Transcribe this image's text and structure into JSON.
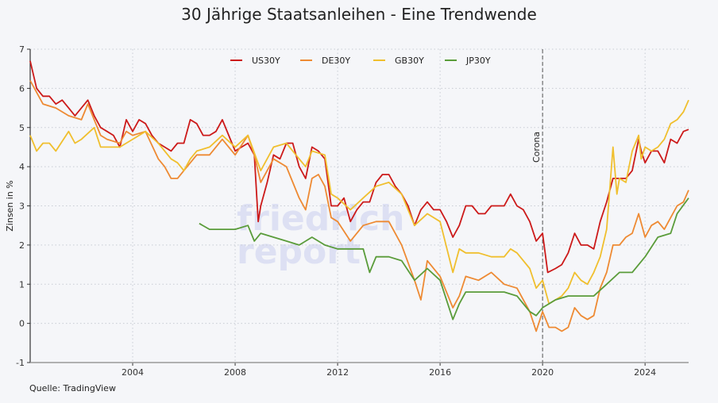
{
  "title": "30 Jährige Staatsanleihen - Eine Trendwende",
  "source": "Quelle: TradingView",
  "watermark": "friedrich report",
  "chart_data": {
    "type": "line",
    "title": "30 Jährige Staatsanleihen - Eine Trendwende",
    "xlabel": "",
    "ylabel": "Zinsen in %",
    "xlim": [
      2000,
      2025.7
    ],
    "ylim": [
      -1,
      7
    ],
    "x_ticks": [
      2004,
      2008,
      2012,
      2016,
      2020,
      2024
    ],
    "y_ticks": [
      -1,
      0,
      1,
      2,
      3,
      4,
      5,
      6,
      7
    ],
    "grid": true,
    "legend_position": "top-center",
    "annotations": [
      {
        "label": "Corona",
        "x": 2020.0,
        "style": "dashed-vertical-line"
      }
    ],
    "series": [
      {
        "name": "US30Y",
        "color": "#cc1a1a",
        "x": [
          2000,
          2000.25,
          2000.5,
          2000.75,
          2001,
          2001.25,
          2001.5,
          2001.75,
          2002,
          2002.25,
          2002.5,
          2002.75,
          2003,
          2003.25,
          2003.5,
          2003.75,
          2004,
          2004.25,
          2004.5,
          2004.75,
          2005,
          2005.25,
          2005.5,
          2005.75,
          2006,
          2006.25,
          2006.5,
          2006.75,
          2007,
          2007.25,
          2007.5,
          2007.75,
          2008,
          2008.25,
          2008.5,
          2008.75,
          2008.9,
          2009,
          2009.25,
          2009.5,
          2009.75,
          2010,
          2010.25,
          2010.5,
          2010.75,
          2011,
          2011.25,
          2011.5,
          2011.75,
          2012,
          2012.25,
          2012.5,
          2012.75,
          2013,
          2013.25,
          2013.5,
          2013.75,
          2014,
          2014.25,
          2014.5,
          2014.75,
          2015,
          2015.25,
          2015.5,
          2015.75,
          2016,
          2016.25,
          2016.5,
          2016.75,
          2017,
          2017.25,
          2017.5,
          2017.75,
          2018,
          2018.25,
          2018.5,
          2018.75,
          2019,
          2019.25,
          2019.5,
          2019.75,
          2020,
          2020.2,
          2020.5,
          2020.75,
          2021,
          2021.25,
          2021.5,
          2021.75,
          2022,
          2022.25,
          2022.5,
          2022.75,
          2023,
          2023.25,
          2023.5,
          2023.75,
          2023.85,
          2024,
          2024.25,
          2024.5,
          2024.75,
          2025,
          2025.25,
          2025.5,
          2025.7
        ],
        "values": [
          6.7,
          6.0,
          5.8,
          5.8,
          5.6,
          5.7,
          5.5,
          5.3,
          5.5,
          5.7,
          5.3,
          5.0,
          4.9,
          4.8,
          4.5,
          5.2,
          4.9,
          5.2,
          5.1,
          4.8,
          4.6,
          4.5,
          4.4,
          4.6,
          4.6,
          5.2,
          5.1,
          4.8,
          4.8,
          4.9,
          5.2,
          4.8,
          4.4,
          4.5,
          4.6,
          4.3,
          2.6,
          3.0,
          3.6,
          4.3,
          4.2,
          4.6,
          4.6,
          4.0,
          3.7,
          4.5,
          4.4,
          4.2,
          3.0,
          3.0,
          3.2,
          2.6,
          2.9,
          3.1,
          3.1,
          3.6,
          3.8,
          3.8,
          3.5,
          3.3,
          3.0,
          2.5,
          2.9,
          3.1,
          2.9,
          2.9,
          2.6,
          2.2,
          2.5,
          3.0,
          3.0,
          2.8,
          2.8,
          3.0,
          3.0,
          3.0,
          3.3,
          3.0,
          2.9,
          2.6,
          2.1,
          2.3,
          1.3,
          1.4,
          1.5,
          1.8,
          2.3,
          2.0,
          2.0,
          1.9,
          2.6,
          3.1,
          3.7,
          3.7,
          3.7,
          3.9,
          4.7,
          4.4,
          4.1,
          4.4,
          4.4,
          4.1,
          4.7,
          4.6,
          4.9,
          4.95
        ]
      },
      {
        "name": "DE30Y",
        "color": "#ee8a33",
        "x": [
          2000,
          2000.5,
          2001,
          2001.5,
          2002,
          2002.25,
          2002.5,
          2002.75,
          2003,
          2003.5,
          2003.75,
          2004,
          2004.5,
          2005,
          2005.25,
          2005.5,
          2005.75,
          2006,
          2006.5,
          2007,
          2007.5,
          2008,
          2008.5,
          2008.75,
          2009,
          2009.5,
          2010,
          2010.5,
          2010.75,
          2011,
          2011.25,
          2011.5,
          2011.75,
          2012,
          2012.5,
          2013,
          2013.5,
          2014,
          2014.5,
          2015,
          2015.25,
          2015.5,
          2016,
          2016.5,
          2016.75,
          2017,
          2017.5,
          2018,
          2018.5,
          2019,
          2019.5,
          2019.75,
          2020,
          2020.25,
          2020.5,
          2020.75,
          2021,
          2021.25,
          2021.5,
          2021.75,
          2022,
          2022.25,
          2022.5,
          2022.75,
          2023,
          2023.25,
          2023.5,
          2023.75,
          2024,
          2024.25,
          2024.5,
          2024.75,
          2025,
          2025.25,
          2025.5,
          2025.7
        ],
        "values": [
          6.2,
          5.6,
          5.5,
          5.3,
          5.2,
          5.6,
          5.2,
          4.8,
          4.7,
          4.6,
          4.9,
          4.8,
          4.9,
          4.2,
          4.0,
          3.7,
          3.7,
          3.9,
          4.3,
          4.3,
          4.7,
          4.3,
          4.8,
          4.3,
          3.6,
          4.2,
          4.0,
          3.2,
          2.9,
          3.7,
          3.8,
          3.5,
          2.7,
          2.6,
          2.1,
          2.5,
          2.6,
          2.6,
          2.0,
          1.1,
          0.6,
          1.6,
          1.2,
          0.4,
          0.7,
          1.2,
          1.1,
          1.3,
          1.0,
          0.9,
          0.3,
          -0.2,
          0.3,
          -0.1,
          -0.1,
          -0.2,
          -0.1,
          0.4,
          0.2,
          0.1,
          0.2,
          0.9,
          1.3,
          2.0,
          2.0,
          2.2,
          2.3,
          2.8,
          2.2,
          2.5,
          2.6,
          2.4,
          2.7,
          3.0,
          3.1,
          3.4
        ]
      },
      {
        "name": "GB30Y",
        "color": "#f0bf2e",
        "x": [
          2000,
          2000.25,
          2000.5,
          2000.75,
          2001,
          2001.5,
          2001.75,
          2002,
          2002.5,
          2002.75,
          2003,
          2003.5,
          2004,
          2004.5,
          2005,
          2005.5,
          2005.75,
          2006,
          2006.25,
          2006.5,
          2007,
          2007.5,
          2008,
          2008.5,
          2009,
          2009.5,
          2010,
          2010.5,
          2010.75,
          2011,
          2011.5,
          2011.75,
          2012,
          2012.5,
          2013,
          2013.5,
          2014,
          2014.5,
          2015,
          2015.5,
          2016,
          2016.5,
          2016.75,
          2017,
          2017.5,
          2018,
          2018.5,
          2018.75,
          2019,
          2019.5,
          2019.75,
          2020,
          2020.25,
          2020.5,
          2020.75,
          2021,
          2021.25,
          2021.5,
          2021.75,
          2022,
          2022.25,
          2022.5,
          2022.75,
          2022.9,
          2023,
          2023.25,
          2023.5,
          2023.75,
          2023.85,
          2024,
          2024.25,
          2024.5,
          2024.75,
          2025,
          2025.25,
          2025.5,
          2025.7
        ],
        "values": [
          4.8,
          4.4,
          4.6,
          4.6,
          4.4,
          4.9,
          4.6,
          4.7,
          5.0,
          4.5,
          4.5,
          4.5,
          4.7,
          4.9,
          4.6,
          4.2,
          4.1,
          3.9,
          4.2,
          4.4,
          4.5,
          4.8,
          4.5,
          4.8,
          3.9,
          4.5,
          4.6,
          4.2,
          4.0,
          4.4,
          4.3,
          3.3,
          3.2,
          2.9,
          3.2,
          3.5,
          3.6,
          3.3,
          2.5,
          2.8,
          2.6,
          1.3,
          1.9,
          1.8,
          1.8,
          1.7,
          1.7,
          1.9,
          1.8,
          1.4,
          0.9,
          1.1,
          0.5,
          0.6,
          0.7,
          0.9,
          1.3,
          1.1,
          1.0,
          1.3,
          1.7,
          2.4,
          4.5,
          3.3,
          3.7,
          3.6,
          4.4,
          4.8,
          4.2,
          4.5,
          4.4,
          4.5,
          4.7,
          5.1,
          5.2,
          5.4,
          5.7
        ]
      },
      {
        "name": "JP30Y",
        "color": "#5a9c3a",
        "x": [
          2006.6,
          2007,
          2007.5,
          2008,
          2008.5,
          2008.75,
          2009,
          2009.5,
          2010,
          2010.5,
          2011,
          2011.5,
          2012,
          2012.5,
          2013,
          2013.25,
          2013.5,
          2014,
          2014.5,
          2015,
          2015.5,
          2016,
          2016.5,
          2016.75,
          2017,
          2017.5,
          2018,
          2018.5,
          2019,
          2019.5,
          2019.75,
          2020,
          2020.5,
          2021,
          2021.5,
          2022,
          2022.5,
          2023,
          2023.5,
          2024,
          2024.5,
          2025,
          2025.25,
          2025.7
        ],
        "values": [
          2.55,
          2.4,
          2.4,
          2.4,
          2.5,
          2.1,
          2.3,
          2.2,
          2.1,
          2.0,
          2.2,
          2.0,
          1.9,
          1.9,
          1.9,
          1.3,
          1.7,
          1.7,
          1.6,
          1.1,
          1.4,
          1.1,
          0.1,
          0.5,
          0.8,
          0.8,
          0.8,
          0.8,
          0.7,
          0.3,
          0.2,
          0.4,
          0.6,
          0.7,
          0.7,
          0.7,
          1.0,
          1.3,
          1.3,
          1.7,
          2.2,
          2.3,
          2.8,
          3.2
        ]
      }
    ]
  }
}
